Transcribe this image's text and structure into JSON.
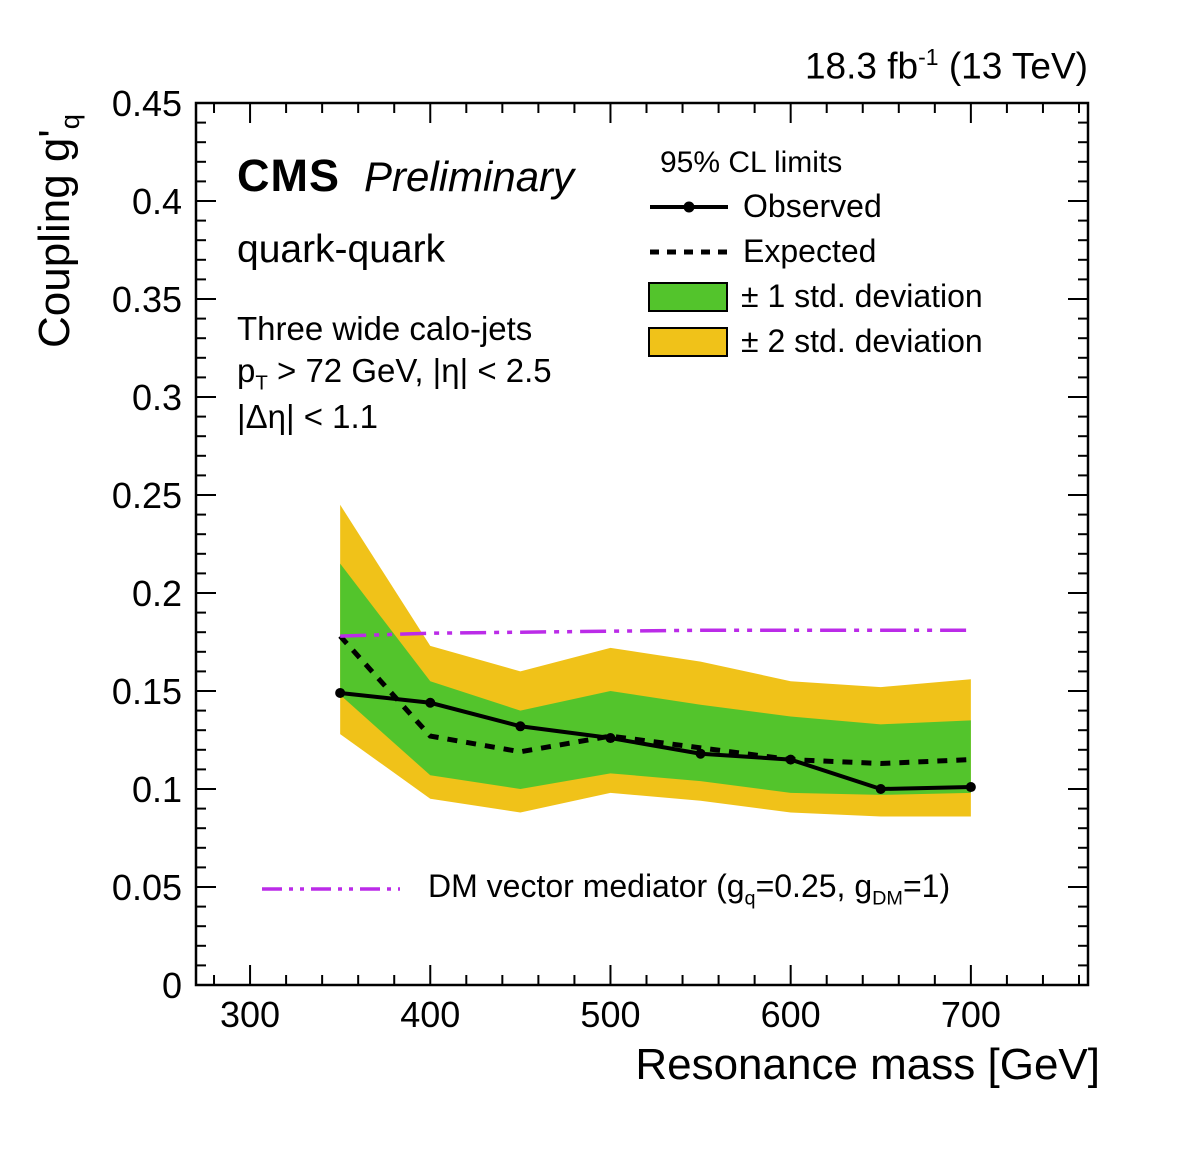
{
  "colors": {
    "observed": "#000000",
    "expected": "#000000",
    "band1": "#53c42c",
    "band2": "#f0c219",
    "dm_line": "#bb2be8",
    "frame": "#000000"
  },
  "header": {
    "lumi_main": "18.3 fb",
    "lumi_sup": "-1",
    "lumi_tail": " (13 TeV)"
  },
  "plot_labels": {
    "cms": "CMS",
    "preliminary": "Preliminary",
    "channel": "quark-quark",
    "selection_line1": "Three wide calo-jets",
    "sel2_p": "p",
    "sel2_sub": "T",
    "sel2_rest": " > 72 GeV, |η| < 2.5",
    "selection_line3": "|Δη| < 1.1"
  },
  "legend": {
    "title": "95% CL limits",
    "observed": "Observed",
    "expected": "Expected",
    "band1": "± 1 std. deviation",
    "band2": "± 2 std. deviation"
  },
  "dm_legend": {
    "part1": "DM vector mediator (g",
    "sub1": "q",
    "part2": "=0.25, g",
    "sub2": "DM",
    "part3": "=1)"
  },
  "axes": {
    "x_title": "Resonance mass [GeV]",
    "y_title_main": "Coupling g'",
    "y_title_sub": "q"
  },
  "chart_data": {
    "type": "line",
    "title": "CMS Preliminary 95% CL upper limits on coupling g'_q vs resonance mass, quark-quark channel",
    "xlabel": "Resonance mass [GeV]",
    "ylabel": "Coupling g'_q",
    "xlim": [
      270,
      765
    ],
    "ylim": [
      0,
      0.45
    ],
    "x_major_ticks": [
      300,
      400,
      500,
      600,
      700
    ],
    "x_minor_step": 20,
    "y_major_ticks": [
      0,
      0.05,
      0.1,
      0.15,
      0.2,
      0.25,
      0.3,
      0.35,
      0.4,
      0.45
    ],
    "y_minor_step": 0.01,
    "grid": false,
    "legend_position": "top-right",
    "x": [
      350,
      400,
      450,
      500,
      550,
      600,
      650,
      700
    ],
    "series": [
      {
        "name": "Observed",
        "values": [
          0.149,
          0.144,
          0.132,
          0.126,
          0.118,
          0.115,
          0.1,
          0.101
        ]
      },
      {
        "name": "Expected",
        "values": [
          0.178,
          0.127,
          0.119,
          0.127,
          0.121,
          0.115,
          0.113,
          0.115
        ]
      },
      {
        "name": "band1_up",
        "values": [
          0.215,
          0.155,
          0.14,
          0.15,
          0.143,
          0.137,
          0.133,
          0.135
        ]
      },
      {
        "name": "band1_down",
        "values": [
          0.148,
          0.107,
          0.1,
          0.108,
          0.104,
          0.098,
          0.097,
          0.098
        ]
      },
      {
        "name": "band2_up",
        "values": [
          0.245,
          0.173,
          0.16,
          0.172,
          0.165,
          0.155,
          0.152,
          0.156
        ]
      },
      {
        "name": "band2_down",
        "values": [
          0.128,
          0.095,
          0.088,
          0.098,
          0.094,
          0.088,
          0.086,
          0.086
        ]
      },
      {
        "name": "DM vector mediator",
        "values": [
          0.178,
          0.1795,
          0.18,
          0.1805,
          0.181,
          0.181,
          0.181,
          0.181
        ]
      }
    ]
  }
}
